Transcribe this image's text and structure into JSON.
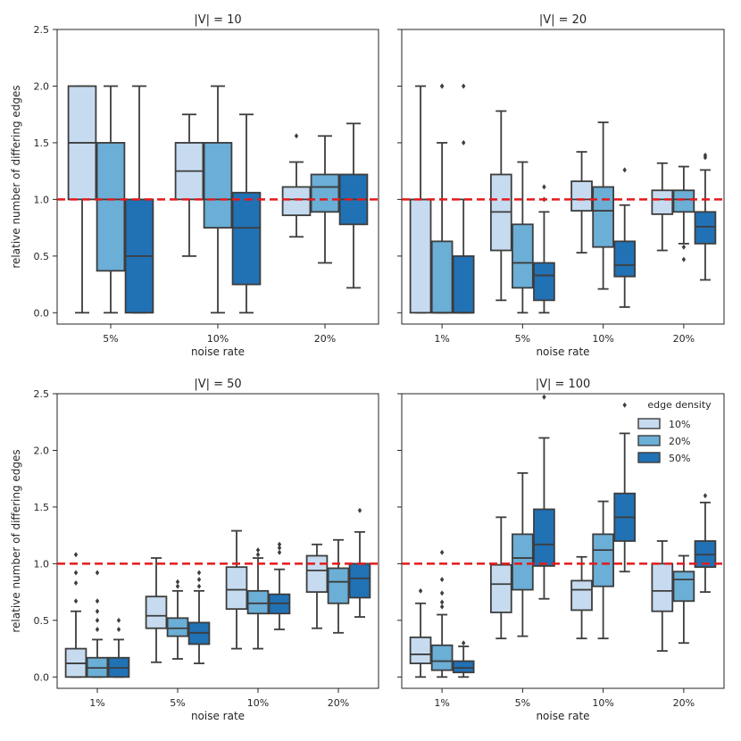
{
  "chart_data": {
    "type": "boxplot",
    "ylabel": "relative number of differing edges",
    "xlabel": "noise rate",
    "ylim": [
      -0.1,
      2.5
    ],
    "yticks": [
      0.0,
      0.5,
      1.0,
      1.5,
      2.0,
      2.5
    ],
    "ytick_labels": [
      "0.0",
      "0.5",
      "1.0",
      "1.5",
      "2.0",
      "2.5"
    ],
    "reference_line": 1.0,
    "reference_color": "#e41a1c",
    "legend": {
      "title": "edge density",
      "location": "top-right",
      "entries": [
        "10%",
        "20%",
        "50%"
      ]
    },
    "colors": [
      "#c6dbef",
      "#6baed6",
      "#2171b5"
    ],
    "panels": [
      {
        "title": "|V| = 10",
        "categories": [
          "5%",
          "10%",
          "20%"
        ],
        "groups": [
          {
            "category": "5%",
            "boxes": [
              {
                "series": "10%",
                "wlo": 0.0,
                "q1": 1.0,
                "med": 1.5,
                "q3": 2.0,
                "whi": 2.0,
                "fliers": []
              },
              {
                "series": "20%",
                "wlo": 0.0,
                "q1": 0.37,
                "med": 1.0,
                "q3": 1.5,
                "whi": 2.0,
                "fliers": []
              },
              {
                "series": "50%",
                "wlo": 0.0,
                "q1": 0.0,
                "med": 0.5,
                "q3": 1.0,
                "whi": 2.0,
                "fliers": []
              }
            ]
          },
          {
            "category": "10%",
            "boxes": [
              {
                "series": "10%",
                "wlo": 0.5,
                "q1": 1.0,
                "med": 1.25,
                "q3": 1.5,
                "whi": 1.75,
                "fliers": []
              },
              {
                "series": "20%",
                "wlo": 0.0,
                "q1": 0.75,
                "med": 1.0,
                "q3": 1.5,
                "whi": 2.0,
                "fliers": []
              },
              {
                "series": "50%",
                "wlo": 0.0,
                "q1": 0.25,
                "med": 0.75,
                "q3": 1.06,
                "whi": 1.75,
                "fliers": []
              }
            ]
          },
          {
            "category": "20%",
            "boxes": [
              {
                "series": "10%",
                "wlo": 0.67,
                "q1": 0.86,
                "med": 1.0,
                "q3": 1.11,
                "whi": 1.33,
                "fliers": [
                  1.56
                ]
              },
              {
                "series": "20%",
                "wlo": 0.44,
                "q1": 0.89,
                "med": 1.11,
                "q3": 1.22,
                "whi": 1.56,
                "fliers": []
              },
              {
                "series": "50%",
                "wlo": 0.22,
                "q1": 0.78,
                "med": 1.0,
                "q3": 1.22,
                "whi": 1.67,
                "fliers": []
              }
            ]
          }
        ]
      },
      {
        "title": "|V| = 20",
        "categories": [
          "1%",
          "5%",
          "10%",
          "20%"
        ],
        "groups": [
          {
            "category": "1%",
            "boxes": [
              {
                "series": "10%",
                "wlo": 0.0,
                "q1": 0.0,
                "med": 1.0,
                "q3": 1.0,
                "whi": 2.0,
                "fliers": []
              },
              {
                "series": "20%",
                "wlo": 0.0,
                "q1": 0.0,
                "med": 0.0,
                "q3": 0.63,
                "whi": 1.5,
                "fliers": [
                  2.0,
                  2.0
                ]
              },
              {
                "series": "50%",
                "wlo": 0.0,
                "q1": 0.0,
                "med": 0.0,
                "q3": 0.5,
                "whi": 1.0,
                "fliers": [
                  1.5,
                  2.0
                ]
              }
            ]
          },
          {
            "category": "5%",
            "boxes": [
              {
                "series": "10%",
                "wlo": 0.11,
                "q1": 0.55,
                "med": 0.89,
                "q3": 1.22,
                "whi": 1.78,
                "fliers": []
              },
              {
                "series": "20%",
                "wlo": 0.0,
                "q1": 0.22,
                "med": 0.44,
                "q3": 0.78,
                "whi": 1.33,
                "fliers": []
              },
              {
                "series": "50%",
                "wlo": 0.0,
                "q1": 0.11,
                "med": 0.33,
                "q3": 0.44,
                "whi": 0.89,
                "fliers": [
                  1.11,
                  1.0
                ]
              }
            ]
          },
          {
            "category": "10%",
            "boxes": [
              {
                "series": "10%",
                "wlo": 0.53,
                "q1": 0.9,
                "med": 1.0,
                "q3": 1.16,
                "whi": 1.42,
                "fliers": []
              },
              {
                "series": "20%",
                "wlo": 0.21,
                "q1": 0.58,
                "med": 0.9,
                "q3": 1.11,
                "whi": 1.68,
                "fliers": []
              },
              {
                "series": "50%",
                "wlo": 0.05,
                "q1": 0.32,
                "med": 0.42,
                "q3": 0.63,
                "whi": 0.95,
                "fliers": [
                  1.26
                ]
              }
            ]
          },
          {
            "category": "20%",
            "boxes": [
              {
                "series": "10%",
                "wlo": 0.55,
                "q1": 0.87,
                "med": 1.0,
                "q3": 1.08,
                "whi": 1.32,
                "fliers": []
              },
              {
                "series": "20%",
                "wlo": 0.61,
                "q1": 0.89,
                "med": 1.0,
                "q3": 1.08,
                "whi": 1.29,
                "fliers": [
                  0.58,
                  0.47
                ]
              },
              {
                "series": "50%",
                "wlo": 0.29,
                "q1": 0.61,
                "med": 0.76,
                "q3": 0.89,
                "whi": 1.26,
                "fliers": [
                  1.37,
                  1.39
                ]
              }
            ]
          }
        ]
      },
      {
        "title": "|V| = 50",
        "categories": [
          "1%",
          "5%",
          "10%",
          "20%"
        ],
        "groups": [
          {
            "category": "1%",
            "boxes": [
              {
                "series": "10%",
                "wlo": 0.0,
                "q1": 0.0,
                "med": 0.12,
                "q3": 0.25,
                "whi": 0.58,
                "fliers": [
                  0.67,
                  0.83,
                  0.92,
                  1.08
                ]
              },
              {
                "series": "20%",
                "wlo": 0.0,
                "q1": 0.0,
                "med": 0.08,
                "q3": 0.17,
                "whi": 0.33,
                "fliers": [
                  0.42,
                  0.5,
                  0.58,
                  0.67,
                  0.92
                ]
              },
              {
                "series": "50%",
                "wlo": 0.0,
                "q1": 0.0,
                "med": 0.08,
                "q3": 0.17,
                "whi": 0.33,
                "fliers": [
                  0.42,
                  0.5
                ]
              }
            ]
          },
          {
            "category": "5%",
            "boxes": [
              {
                "series": "10%",
                "wlo": 0.13,
                "q1": 0.43,
                "med": 0.54,
                "q3": 0.71,
                "whi": 1.05,
                "fliers": []
              },
              {
                "series": "20%",
                "wlo": 0.16,
                "q1": 0.36,
                "med": 0.43,
                "q3": 0.52,
                "whi": 0.76,
                "fliers": [
                  0.8,
                  0.84
                ]
              },
              {
                "series": "50%",
                "wlo": 0.12,
                "q1": 0.29,
                "med": 0.39,
                "q3": 0.48,
                "whi": 0.76,
                "fliers": [
                  0.8,
                  0.86,
                  0.92
                ]
              }
            ]
          },
          {
            "category": "10%",
            "boxes": [
              {
                "series": "10%",
                "wlo": 0.25,
                "q1": 0.6,
                "med": 0.77,
                "q3": 0.97,
                "whi": 1.29,
                "fliers": []
              },
              {
                "series": "20%",
                "wlo": 0.25,
                "q1": 0.56,
                "med": 0.65,
                "q3": 0.76,
                "whi": 1.05,
                "fliers": [
                  1.08,
                  1.12
                ]
              },
              {
                "series": "50%",
                "wlo": 0.42,
                "q1": 0.56,
                "med": 0.65,
                "q3": 0.73,
                "whi": 0.95,
                "fliers": [
                  1.1,
                  1.14,
                  1.17
                ]
              }
            ]
          },
          {
            "category": "20%",
            "boxes": [
              {
                "series": "10%",
                "wlo": 0.43,
                "q1": 0.75,
                "med": 0.94,
                "q3": 1.07,
                "whi": 1.17,
                "fliers": []
              },
              {
                "series": "20%",
                "wlo": 0.39,
                "q1": 0.65,
                "med": 0.84,
                "q3": 0.96,
                "whi": 1.21,
                "fliers": []
              },
              {
                "series": "50%",
                "wlo": 0.53,
                "q1": 0.7,
                "med": 0.87,
                "q3": 1.0,
                "whi": 1.28,
                "fliers": [
                  1.47
                ]
              }
            ]
          }
        ]
      },
      {
        "title": "|V| = 100",
        "categories": [
          "1%",
          "5%",
          "10%",
          "20%"
        ],
        "show_legend": true,
        "groups": [
          {
            "category": "1%",
            "boxes": [
              {
                "series": "10%",
                "wlo": 0.0,
                "q1": 0.12,
                "med": 0.2,
                "q3": 0.35,
                "whi": 0.65,
                "fliers": [
                  0.76
                ]
              },
              {
                "series": "20%",
                "wlo": 0.0,
                "q1": 0.06,
                "med": 0.14,
                "q3": 0.28,
                "whi": 0.55,
                "fliers": [
                  0.62,
                  0.66,
                  0.74,
                  0.86,
                  1.1
                ]
              },
              {
                "series": "50%",
                "wlo": 0.0,
                "q1": 0.04,
                "med": 0.08,
                "q3": 0.14,
                "whi": 0.27,
                "fliers": [
                  0.3
                ]
              }
            ]
          },
          {
            "category": "5%",
            "boxes": [
              {
                "series": "10%",
                "wlo": 0.34,
                "q1": 0.57,
                "med": 0.82,
                "q3": 0.99,
                "whi": 1.41,
                "fliers": []
              },
              {
                "series": "20%",
                "wlo": 0.36,
                "q1": 0.77,
                "med": 1.05,
                "q3": 1.26,
                "whi": 1.8,
                "fliers": []
              },
              {
                "series": "50%",
                "wlo": 0.69,
                "q1": 0.98,
                "med": 1.17,
                "q3": 1.48,
                "whi": 2.11,
                "fliers": [
                  2.47
                ]
              }
            ]
          },
          {
            "category": "10%",
            "boxes": [
              {
                "series": "10%",
                "wlo": 0.34,
                "q1": 0.59,
                "med": 0.77,
                "q3": 0.85,
                "whi": 1.06,
                "fliers": []
              },
              {
                "series": "20%",
                "wlo": 0.34,
                "q1": 0.8,
                "med": 1.12,
                "q3": 1.26,
                "whi": 1.55,
                "fliers": []
              },
              {
                "series": "50%",
                "wlo": 0.93,
                "q1": 1.2,
                "med": 1.41,
                "q3": 1.62,
                "whi": 2.15,
                "fliers": [
                  2.4
                ]
              }
            ]
          },
          {
            "category": "20%",
            "boxes": [
              {
                "series": "10%",
                "wlo": 0.23,
                "q1": 0.58,
                "med": 0.76,
                "q3": 1.0,
                "whi": 1.2,
                "fliers": []
              },
              {
                "series": "20%",
                "wlo": 0.3,
                "q1": 0.67,
                "med": 0.86,
                "q3": 0.93,
                "whi": 1.07,
                "fliers": []
              },
              {
                "series": "50%",
                "wlo": 0.75,
                "q1": 0.97,
                "med": 1.08,
                "q3": 1.2,
                "whi": 1.54,
                "fliers": [
                  1.6
                ]
              }
            ]
          }
        ]
      }
    ]
  }
}
